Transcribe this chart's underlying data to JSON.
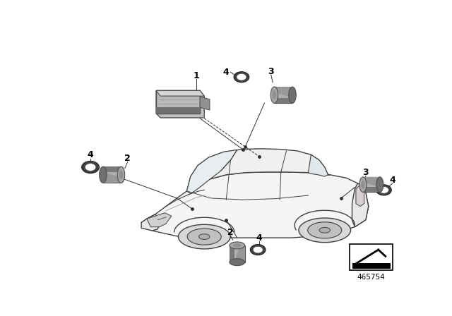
{
  "bg_color": "#ffffff",
  "line_color": "#000000",
  "fig_number": "465754",
  "car_color": "#e8e8e8",
  "sensor_light": "#c8c8c8",
  "sensor_dark": "#888888",
  "sensor_darker": "#555555",
  "module_light": "#c0c0c0",
  "module_dark": "#606060",
  "ring_color": "#444444"
}
